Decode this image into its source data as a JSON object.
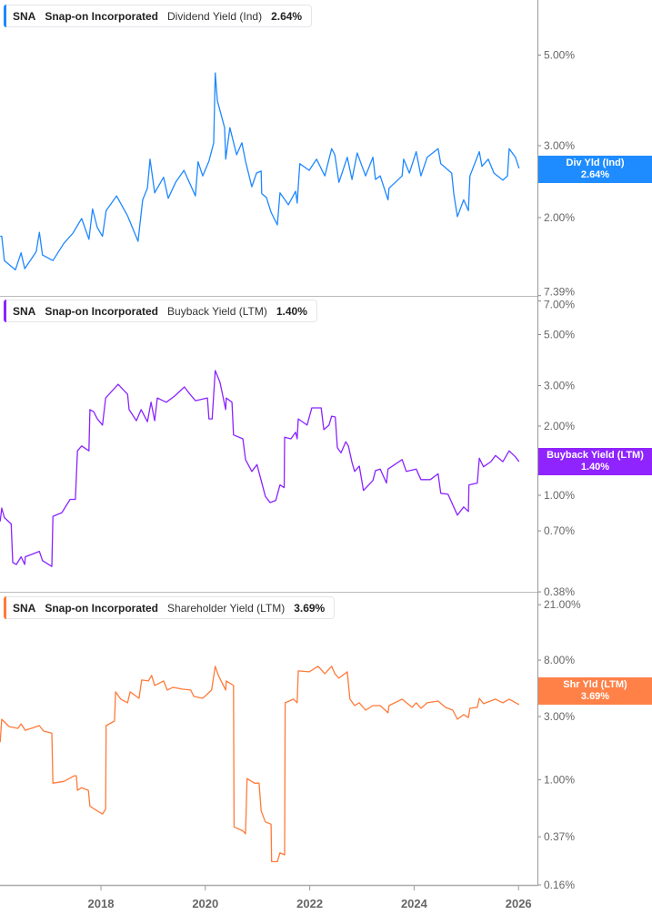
{
  "chart_data": [
    {
      "type": "line",
      "legend": {
        "ticker": "SNA",
        "company": "Snap-on Incorporated",
        "metric": "Dividend Yield (Ind)",
        "value": "2.64%"
      },
      "badge": {
        "label": "Div Yld (Ind)",
        "value": "2.64%"
      },
      "color": "#1e88ff",
      "y_scale": "log",
      "y_ticks": [
        "5.00%",
        "3.00%",
        "2.00%"
      ],
      "y_tick_values": [
        5,
        3,
        2
      ],
      "x": [
        2016.07,
        2016.1,
        2016.15,
        2016.36,
        2016.47,
        2016.54,
        2016.76,
        2016.82,
        2016.88,
        2017.08,
        2017.29,
        2017.46,
        2017.63,
        2017.77,
        2017.84,
        2017.93,
        2018.03,
        2018.1,
        2018.3,
        2018.51,
        2018.71,
        2018.8,
        2018.89,
        2018.94,
        2019.03,
        2019.2,
        2019.29,
        2019.43,
        2019.59,
        2019.81,
        2019.86,
        2019.95,
        2020.07,
        2020.16,
        2020.19,
        2020.23,
        2020.37,
        2020.39,
        2020.47,
        2020.6,
        2020.7,
        2020.77,
        2020.89,
        2020.98,
        2021.07,
        2021.08,
        2021.17,
        2021.26,
        2021.38,
        2021.43,
        2021.59,
        2021.73,
        2021.76,
        2021.81,
        2021.99,
        2022.13,
        2022.29,
        2022.42,
        2022.48,
        2022.56,
        2022.72,
        2022.81,
        2022.91,
        2023.07,
        2023.21,
        2023.26,
        2023.35,
        2023.5,
        2023.52,
        2023.77,
        2023.8,
        2023.91,
        2024.04,
        2024.13,
        2024.25,
        2024.46,
        2024.51,
        2024.72,
        2024.76,
        2024.83,
        2024.95,
        2025.04,
        2025.07,
        2025.25,
        2025.3,
        2025.42,
        2025.53,
        2025.7,
        2025.79,
        2025.82,
        2025.94,
        2026.01
      ],
      "values": [
        1.8,
        1.8,
        1.57,
        1.49,
        1.64,
        1.5,
        1.65,
        1.84,
        1.62,
        1.57,
        1.73,
        1.83,
        1.99,
        1.77,
        2.1,
        1.89,
        1.8,
        2.08,
        2.26,
        2.02,
        1.75,
        2.21,
        2.36,
        2.78,
        2.3,
        2.51,
        2.23,
        2.44,
        2.61,
        2.26,
        2.74,
        2.53,
        2.75,
        3.05,
        4.52,
        3.87,
        3.32,
        2.78,
        3.32,
        2.85,
        3.05,
        2.75,
        2.38,
        2.57,
        2.6,
        2.29,
        2.24,
        2.06,
        1.92,
        2.3,
        2.15,
        2.32,
        2.17,
        2.71,
        2.61,
        2.78,
        2.53,
        2.95,
        2.85,
        2.44,
        2.81,
        2.48,
        2.88,
        2.53,
        2.81,
        2.48,
        2.53,
        2.21,
        2.36,
        2.53,
        2.78,
        2.57,
        2.9,
        2.53,
        2.81,
        2.95,
        2.71,
        2.57,
        2.29,
        2.01,
        2.21,
        2.08,
        2.53,
        2.9,
        2.67,
        2.78,
        2.57,
        2.47,
        2.53,
        2.95,
        2.81,
        2.64
      ]
    },
    {
      "type": "line",
      "legend": {
        "ticker": "SNA",
        "company": "Snap-on Incorporated",
        "metric": "Buyback Yield (LTM)",
        "value": "1.40%"
      },
      "badge": {
        "label": "Buyback Yield (LTM)",
        "value": "1.40%"
      },
      "color": "#8a24ff",
      "y_scale": "log",
      "y_ticks": [
        "7.39%",
        "7.00%",
        "5.00%",
        "3.00%",
        "2.00%",
        "1.00%",
        "0.70%",
        "0.38%"
      ],
      "y_tick_values": [
        7.39,
        7,
        5,
        3,
        2,
        1,
        0.7,
        0.38
      ],
      "x": [
        2016.07,
        2016.1,
        2016.15,
        2016.28,
        2016.31,
        2016.38,
        2016.47,
        2016.54,
        2016.55,
        2016.82,
        2016.88,
        2017.06,
        2017.08,
        2017.25,
        2017.41,
        2017.51,
        2017.55,
        2017.63,
        2017.77,
        2017.79,
        2017.86,
        2017.93,
        2018.03,
        2018.09,
        2018.33,
        2018.51,
        2018.54,
        2018.68,
        2018.77,
        2018.89,
        2018.96,
        2019.03,
        2019.08,
        2019.25,
        2019.41,
        2019.6,
        2019.69,
        2019.81,
        2020.04,
        2020.07,
        2020.13,
        2020.19,
        2020.28,
        2020.39,
        2020.4,
        2020.51,
        2020.54,
        2020.72,
        2020.77,
        2020.89,
        2020.99,
        2021.07,
        2021.15,
        2021.24,
        2021.35,
        2021.43,
        2021.51,
        2021.52,
        2021.64,
        2021.73,
        2021.76,
        2021.78,
        2021.95,
        2022.04,
        2022.22,
        2022.27,
        2022.37,
        2022.42,
        2022.49,
        2022.53,
        2022.6,
        2022.69,
        2022.74,
        2022.81,
        2022.86,
        2022.95,
        2023.03,
        2023.21,
        2023.26,
        2023.35,
        2023.47,
        2023.5,
        2023.77,
        2023.85,
        2024.04,
        2024.13,
        2024.31,
        2024.46,
        2024.51,
        2024.65,
        2024.83,
        2024.95,
        2025.04,
        2025.05,
        2025.21,
        2025.25,
        2025.33,
        2025.47,
        2025.56,
        2025.7,
        2025.82,
        2025.94,
        2026.01
      ],
      "values": [
        0.77,
        0.88,
        0.8,
        0.75,
        0.51,
        0.5,
        0.54,
        0.5,
        0.54,
        0.57,
        0.52,
        0.49,
        0.81,
        0.84,
        0.96,
        0.96,
        1.56,
        1.64,
        1.56,
        2.36,
        2.31,
        2.15,
        2.02,
        2.65,
        3.04,
        2.75,
        2.36,
        2.11,
        2.36,
        2.09,
        2.54,
        2.11,
        2.65,
        2.54,
        2.7,
        2.96,
        2.78,
        2.58,
        2.65,
        2.15,
        2.15,
        3.49,
        3.1,
        2.36,
        2.65,
        2.54,
        1.83,
        1.76,
        1.43,
        1.27,
        1.36,
        1.16,
        0.99,
        0.93,
        0.95,
        1.11,
        1.08,
        1.79,
        1.76,
        1.88,
        1.76,
        2.15,
        2.02,
        2.4,
        2.4,
        1.93,
        2.02,
        2.21,
        2.19,
        1.61,
        1.53,
        1.71,
        1.64,
        1.39,
        1.27,
        1.34,
        1.05,
        1.16,
        1.28,
        1.3,
        1.13,
        1.3,
        1.43,
        1.27,
        1.3,
        1.17,
        1.17,
        1.24,
        1.02,
        1.01,
        0.82,
        0.89,
        0.85,
        1.11,
        1.13,
        1.45,
        1.33,
        1.4,
        1.49,
        1.4,
        1.56,
        1.47,
        1.4
      ]
    },
    {
      "type": "line",
      "legend": {
        "ticker": "SNA",
        "company": "Snap-on Incorporated",
        "metric": "Shareholder Yield (LTM)",
        "value": "3.69%"
      },
      "badge": {
        "label": "Shr Yld (LTM)",
        "value": "3.69%"
      },
      "color": "#ff7a3a",
      "y_scale": "log",
      "y_ticks": [
        "21.00%",
        "8.00%",
        "3.00%",
        "1.00%",
        "0.37%",
        "0.16%"
      ],
      "y_tick_values": [
        21,
        8,
        3,
        1,
        0.37,
        0.16
      ],
      "x": [
        2016.07,
        2016.1,
        2016.24,
        2016.41,
        2016.47,
        2016.55,
        2016.82,
        2016.9,
        2017.06,
        2017.08,
        2017.29,
        2017.49,
        2017.53,
        2017.55,
        2017.63,
        2017.76,
        2017.79,
        2017.93,
        2018.03,
        2018.09,
        2018.1,
        2018.26,
        2018.28,
        2018.38,
        2018.51,
        2018.56,
        2018.73,
        2018.78,
        2018.91,
        2018.97,
        2019.03,
        2019.2,
        2019.27,
        2019.38,
        2019.55,
        2019.72,
        2019.78,
        2019.95,
        2020.12,
        2020.19,
        2020.25,
        2020.39,
        2020.4,
        2020.54,
        2020.55,
        2020.72,
        2020.77,
        2020.8,
        2020.94,
        2021.03,
        2021.07,
        2021.15,
        2021.26,
        2021.27,
        2021.38,
        2021.43,
        2021.52,
        2021.53,
        2021.69,
        2021.76,
        2021.78,
        2021.99,
        2022.16,
        2022.29,
        2022.42,
        2022.48,
        2022.56,
        2022.72,
        2022.77,
        2022.86,
        2022.95,
        2023.07,
        2023.21,
        2023.35,
        2023.5,
        2023.52,
        2023.77,
        2023.96,
        2024.04,
        2024.13,
        2024.25,
        2024.46,
        2024.6,
        2024.74,
        2024.83,
        2024.95,
        2025.04,
        2025.07,
        2025.21,
        2025.25,
        2025.33,
        2025.56,
        2025.7,
        2025.82,
        2026.01
      ],
      "values": [
        1.92,
        2.86,
        2.52,
        2.44,
        2.64,
        2.36,
        2.56,
        2.33,
        2.25,
        0.94,
        0.97,
        1.07,
        1.07,
        0.83,
        0.87,
        0.83,
        0.63,
        0.58,
        0.55,
        0.6,
        2.56,
        2.77,
        4.61,
        4.06,
        3.81,
        4.61,
        4.12,
        5.66,
        5.57,
        6.13,
        5.15,
        5.57,
        4.76,
        4.99,
        4.83,
        4.76,
        4.26,
        4.12,
        4.76,
        7.19,
        6.13,
        4.76,
        5.57,
        5.15,
        0.44,
        0.41,
        0.39,
        1.02,
        0.94,
        0.94,
        0.58,
        0.48,
        0.46,
        0.24,
        0.24,
        0.28,
        0.27,
        3.81,
        4.06,
        3.81,
        6.64,
        6.53,
        7.19,
        6.33,
        7.19,
        6.33,
        5.85,
        6.53,
        4.06,
        3.63,
        3.81,
        3.35,
        3.63,
        3.63,
        3.2,
        3.63,
        4.06,
        3.52,
        3.81,
        3.46,
        3.81,
        3.93,
        3.52,
        3.35,
        2.86,
        3.1,
        2.95,
        3.46,
        3.52,
        4.12,
        3.75,
        4.06,
        3.81,
        4.06,
        3.69
      ]
    }
  ],
  "x_axis": {
    "ticks": [
      "2018",
      "2020",
      "2022",
      "2024",
      "2026"
    ],
    "tick_values": [
      2018,
      2020,
      2022,
      2024,
      2026
    ]
  }
}
